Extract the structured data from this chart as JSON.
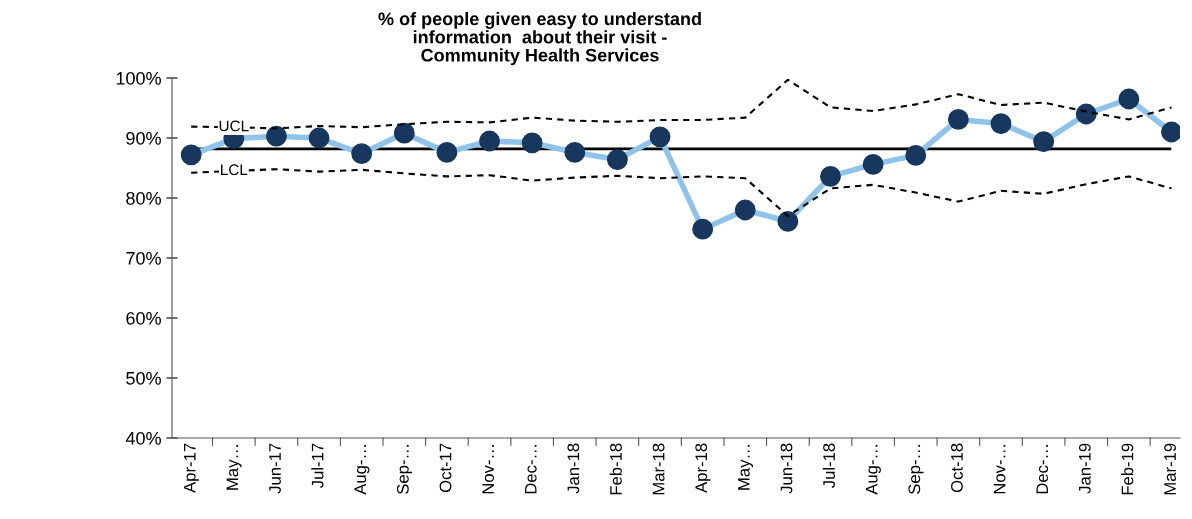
{
  "chart_data": {
    "type": "line",
    "title": "% of people given easy to understand\ninformation  about their visit -\nCommunity Health Services",
    "categories": [
      "Apr-17",
      "May…",
      "Jun-17",
      "Jul-17",
      "Aug-…",
      "Sep-…",
      "Oct-17",
      "Nov-…",
      "Dec-…",
      "Jan-18",
      "Feb-18",
      "Mar-18",
      "Apr-18",
      "May…",
      "Jun-18",
      "Jul-18",
      "Aug-…",
      "Sep-…",
      "Oct-18",
      "Nov-…",
      "Dec-…",
      "Jan-19",
      "Feb-19",
      "Mar-19"
    ],
    "series": [
      {
        "color": "#8fc3ea",
        "marker": "circle",
        "line_style": "solid",
        "values": [
          87.2,
          89.9,
          90.3,
          90.0,
          87.4,
          90.8,
          87.6,
          89.5,
          89.2,
          87.6,
          86.4,
          90.2,
          74.8,
          78.0,
          76.1,
          83.6,
          85.6,
          87.1,
          93.1,
          92.4,
          89.4,
          94.0,
          96.5,
          91.0
        ]
      },
      {
        "name": "UCL",
        "color": "#000000",
        "marker": "none",
        "line_style": "dashed",
        "values": [
          91.9,
          91.8,
          91.6,
          92.0,
          91.8,
          92.3,
          92.7,
          92.6,
          93.4,
          92.9,
          92.7,
          93.0,
          93.0,
          93.4,
          99.7,
          95.1,
          94.5,
          95.6,
          97.3,
          95.5,
          95.9,
          94.4,
          93.1,
          95.1
        ]
      },
      {
        "name": "LCL",
        "color": "#000000",
        "marker": "none",
        "line_style": "dashed",
        "values": [
          84.2,
          84.5,
          84.8,
          84.4,
          84.7,
          84.1,
          83.6,
          83.8,
          82.9,
          83.4,
          83.7,
          83.3,
          83.6,
          83.3,
          77.0,
          81.6,
          82.2,
          80.9,
          79.4,
          81.2,
          80.7,
          82.3,
          83.6,
          81.6
        ]
      }
    ],
    "ref_lines": [
      {
        "axis": "y",
        "value": 88.2,
        "color": "#000000",
        "line_style": "solid"
      }
    ],
    "ylim": [
      40,
      100
    ],
    "yticks": [
      {
        "value": 40,
        "label": "40%"
      },
      {
        "value": 50,
        "label": "50%"
      },
      {
        "value": 60,
        "label": "60%"
      },
      {
        "value": 70,
        "label": "70%"
      },
      {
        "value": 80,
        "label": "80%"
      },
      {
        "value": 90,
        "label": "90%"
      },
      {
        "value": 100,
        "label": "100%"
      }
    ],
    "grid": false,
    "legend": false
  }
}
